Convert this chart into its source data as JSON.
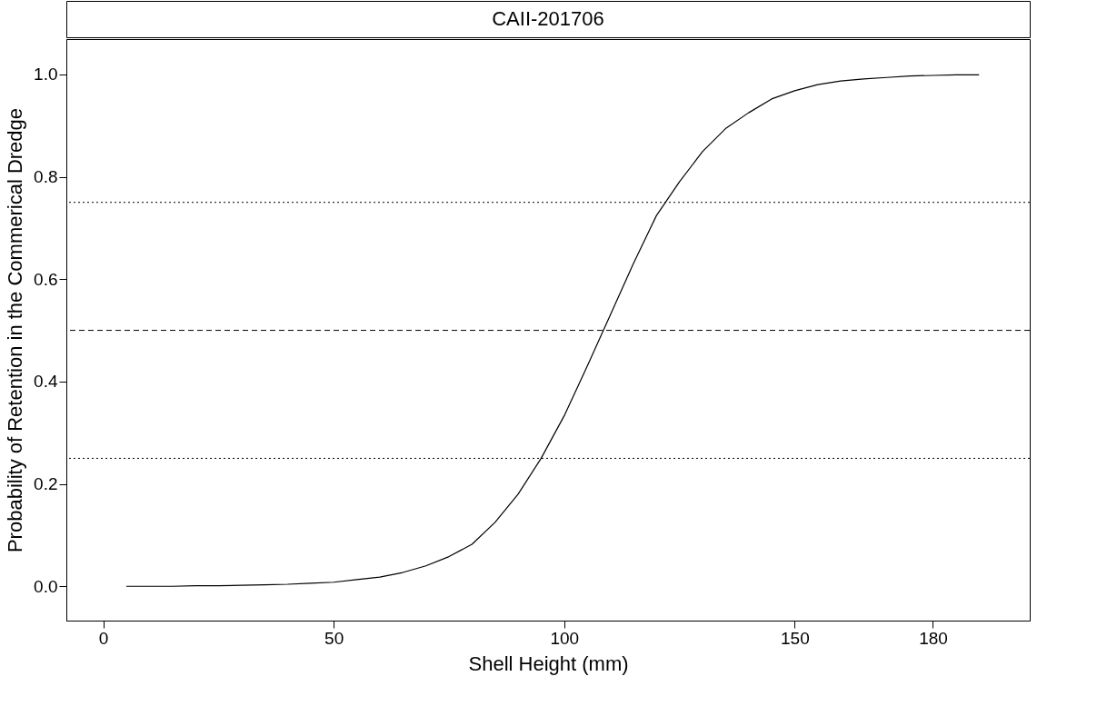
{
  "chart_data": {
    "type": "line",
    "title": "CAII-201706",
    "xlabel": "Shell Height (mm)",
    "ylabel": "Probability of Retention in the Commerical Dredge",
    "x": [
      5,
      10,
      15,
      20,
      25,
      30,
      35,
      40,
      45,
      50,
      55,
      60,
      65,
      70,
      75,
      80,
      85,
      90,
      95,
      100,
      105,
      110,
      115,
      120,
      125,
      130,
      135,
      140,
      145,
      150,
      155,
      160,
      165,
      170,
      175,
      180,
      185,
      190
    ],
    "series": [
      {
        "color": "#000000",
        "values": [
          0,
          0,
          0,
          0.001,
          0.001,
          0.002,
          0.003,
          0.004,
          0.006,
          0.008,
          0.013,
          0.018,
          0.027,
          0.04,
          0.058,
          0.082,
          0.125,
          0.18,
          0.25,
          0.333,
          0.43,
          0.53,
          0.63,
          0.724,
          0.79,
          0.849,
          0.894,
          0.925,
          0.952,
          0.968,
          0.98,
          0.987,
          0.991,
          0.994,
          0.997,
          0.998,
          0.999,
          0.999
        ]
      }
    ],
    "xlim": [
      -8,
      201
    ],
    "xticks": [
      0,
      50,
      100,
      150,
      180
    ],
    "ylim": [
      -0.067,
      1.069
    ],
    "yticks": [
      {
        "value": 0,
        "label": "0.0"
      },
      {
        "value": 0.2,
        "label": "0.2"
      },
      {
        "value": 0.4,
        "label": "0.4"
      },
      {
        "value": 0.6,
        "label": "0.6"
      },
      {
        "value": 0.8,
        "label": "0.8"
      },
      {
        "value": 1,
        "label": "1.0"
      }
    ],
    "ref_lines": [
      {
        "axis": "y",
        "value": 0.75,
        "line_style": "dotted",
        "color": "#000000"
      },
      {
        "axis": "y",
        "value": 0.5,
        "line_style": "dashed",
        "color": "#000000"
      },
      {
        "axis": "y",
        "value": 0.25,
        "line_style": "dotted",
        "color": "#000000"
      }
    ],
    "grid": false,
    "marker": "none",
    "line_style": "solid"
  }
}
